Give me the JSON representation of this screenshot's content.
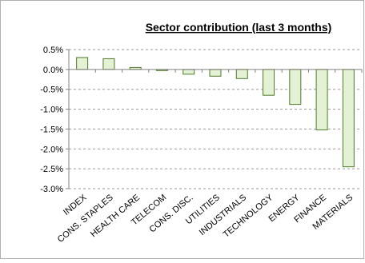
{
  "chart_data": {
    "type": "bar",
    "title": "Sector contribution (last 3 months)",
    "xlabel": "",
    "ylabel": "",
    "categories": [
      "INDEX",
      "CONS. STAPLES",
      "HEALTH CARE",
      "TELECOM",
      "CONS. DISC.",
      "UTILITIES",
      "INDUSTRIALS",
      "TECHNOLOGY",
      "ENERGY",
      "FINANCE",
      "MATERIALS"
    ],
    "values": [
      0.3,
      0.27,
      0.05,
      -0.03,
      -0.12,
      -0.17,
      -0.23,
      -0.65,
      -0.88,
      -1.52,
      -2.45
    ],
    "ylim": [
      -3.0,
      0.5
    ],
    "yticks": [
      0.5,
      0.0,
      -0.5,
      -1.0,
      -1.5,
      -2.0,
      -2.5,
      -3.0
    ],
    "ytick_labels": [
      "0.5%",
      "0.0%",
      "-0.5%",
      "-1.0%",
      "-1.5%",
      "-2.0%",
      "-2.5%",
      "-3.0%"
    ],
    "grid": true,
    "legend": false,
    "colors": {
      "bar_fill": "#e4f1d4",
      "bar_stroke": "#4e7a2a",
      "gridline": "#9a9a9a",
      "axis": "#808080",
      "border": "#b0b0b0"
    }
  }
}
